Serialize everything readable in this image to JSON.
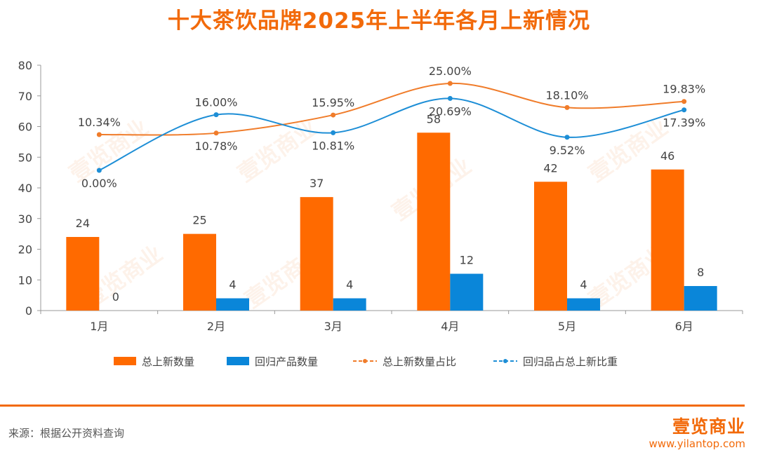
{
  "title": "十大茶饮品牌2025年上半年各月上新情况",
  "chart_data": {
    "type": "bar",
    "categories": [
      "1月",
      "2月",
      "3月",
      "4月",
      "5月",
      "6月"
    ],
    "ylim": [
      0,
      80
    ],
    "yticks": [
      "0",
      "10",
      "20",
      "30",
      "40",
      "50",
      "60",
      "70",
      "80"
    ],
    "grid": false,
    "legend_position": "bottom",
    "series": [
      {
        "name": "总上新数量",
        "type": "bar",
        "color": "#FF6A00",
        "values": [
          24,
          25,
          37,
          58,
          42,
          46
        ]
      },
      {
        "name": "回归产品数量",
        "type": "bar",
        "color": "#0A86D9",
        "values": [
          0,
          4,
          4,
          12,
          4,
          8
        ]
      },
      {
        "name": "总上新数量占比",
        "type": "line",
        "color": "#F07C2A",
        "values": [
          10.34,
          10.78,
          15.95,
          25.0,
          18.1,
          19.83
        ],
        "labels": [
          "10.34%",
          "10.78%",
          "15.95%",
          "25.00%",
          "18.10%",
          "19.83%"
        ]
      },
      {
        "name": "回归品占总上新比重",
        "type": "line",
        "color": "#1D8ED6",
        "values": [
          0.0,
          16.0,
          10.81,
          20.69,
          9.52,
          17.39
        ],
        "labels": [
          "0.00%",
          "16.00%",
          "10.81%",
          "20.69%",
          "9.52%",
          "17.39%"
        ]
      }
    ]
  },
  "footer": {
    "source": "来源：根据公开资料查询",
    "logo": "壹览商业",
    "url": "www.yilantop.com"
  },
  "watermark": "壹览商业"
}
